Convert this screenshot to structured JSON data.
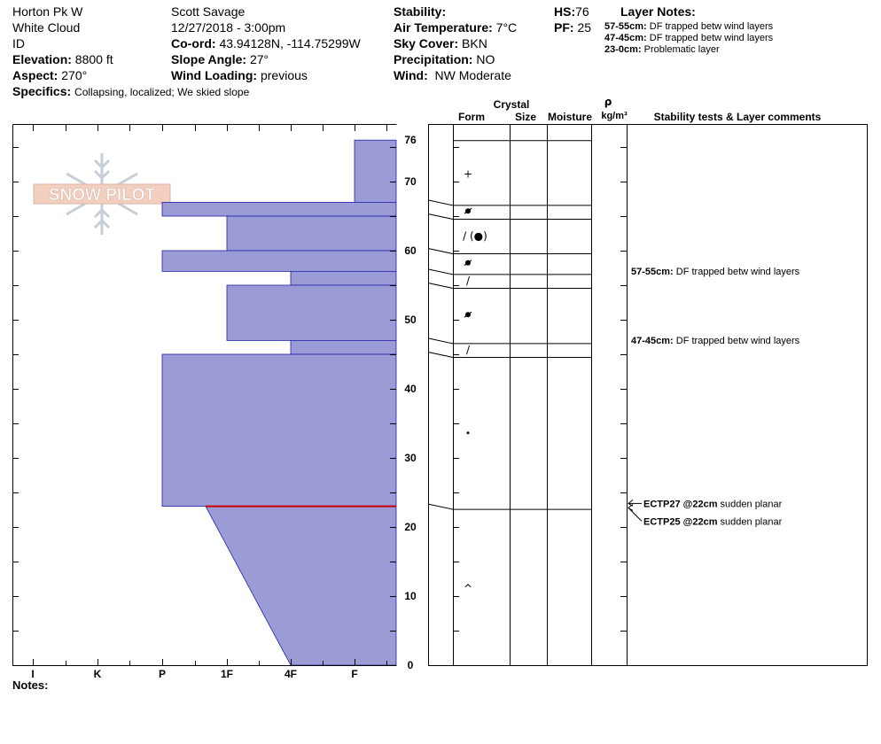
{
  "header": {
    "location": "Horton Pk W",
    "range": "White Cloud",
    "state": "ID",
    "elevation_label": "Elevation:",
    "elevation": "8800 ft",
    "aspect_label": "Aspect:",
    "aspect": "270°",
    "specifics_label": "Specifics:",
    "specifics": "Collapsing, localized;  We skied slope",
    "observer": "Scott Savage",
    "datetime": "12/27/2018 - 3:00pm",
    "coord_label": "Co-ord:",
    "coord": "43.94128N, -114.75299W",
    "slope_label": "Slope Angle:",
    "slope": "27°",
    "wind_loading_label": "Wind Loading:",
    "wind_loading": "previous",
    "stability_label": "Stability:",
    "air_temp_label": "Air Temperature:",
    "air_temp": "7°C",
    "sky_label": "Sky Cover:",
    "sky": "BKN",
    "precip_label": "Precipitation:",
    "precip": "NO",
    "wind_label": "Wind:",
    "wind": "NW Moderate",
    "hs_label": "HS:",
    "hs": "76",
    "pf_label": "PF:",
    "pf": "25"
  },
  "layer_notes": {
    "title": "Layer Notes:",
    "items": [
      {
        "range": "57-55cm:",
        "text": "DF trapped betw wind layers"
      },
      {
        "range": "47-45cm:",
        "text": "DF trapped betw wind layers"
      },
      {
        "range": "23-0cm:",
        "text": "Problematic layer"
      }
    ]
  },
  "columns": {
    "crystal": "Crystal",
    "form": "Form",
    "size": "Size",
    "moisture": "Moisture",
    "rho": "ρ",
    "density_unit": "kg/m³",
    "stability": "Stability tests & Layer comments"
  },
  "notes_label": "Notes:",
  "logo_text": "SNOW PILOT",
  "colors": {
    "hardness_fill": "#9b9bd6",
    "hardness_edge": "#2222aa",
    "weak_layer_line": "#cc0000",
    "grid": "#000000"
  },
  "chart_data": {
    "type": "bar",
    "title": "",
    "xlabel": "",
    "ylabel": "",
    "hardness_scale": [
      "I",
      "K",
      "P",
      "1F",
      "4F",
      "F"
    ],
    "depth_ticks": [
      0,
      10,
      20,
      30,
      40,
      50,
      60,
      70,
      76
    ],
    "ylim": [
      0,
      76
    ],
    "layers": [
      {
        "top": 76,
        "bottom": 67,
        "hardness": "F",
        "form": "+"
      },
      {
        "top": 67,
        "bottom": 65,
        "hardness": "P",
        "form": "melt-freeze"
      },
      {
        "top": 65,
        "bottom": 60,
        "hardness": "1F",
        "form": "/ (●)"
      },
      {
        "top": 60,
        "bottom": 57,
        "hardness": "P",
        "form": "melt-freeze"
      },
      {
        "top": 57,
        "bottom": 55,
        "hardness": "4F",
        "form": "/"
      },
      {
        "top": 55,
        "bottom": 47,
        "hardness": "1F",
        "form": "melt-freeze"
      },
      {
        "top": 47,
        "bottom": 45,
        "hardness": "4F",
        "form": "/"
      },
      {
        "top": 45,
        "bottom": 23,
        "hardness": "P",
        "form": "·"
      },
      {
        "top": 23,
        "bottom": 0,
        "hardness_top": "1F-",
        "hardness_bottom": "4F",
        "form": "^"
      }
    ],
    "weak_layer_depth": 23,
    "layer_comments": [
      {
        "depth": 56,
        "range": "57-55cm:",
        "text": "DF trapped betw wind layers"
      },
      {
        "depth": 46,
        "range": "47-45cm:",
        "text": "DF trapped betw wind layers"
      }
    ],
    "stability_tests": [
      {
        "depth": 22,
        "label": "ECTP27 @22cm",
        "text": "sudden planar"
      },
      {
        "depth": 22,
        "label": "ECTP25 @22cm",
        "text": "sudden planar"
      }
    ]
  }
}
